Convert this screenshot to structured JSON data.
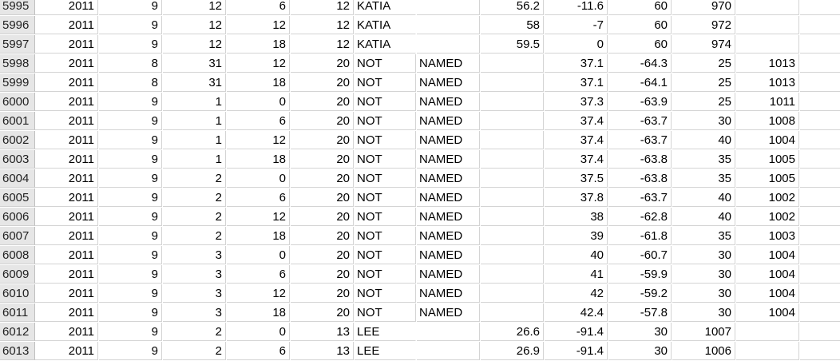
{
  "sheet": {
    "rows": [
      {
        "id": "5995",
        "cells": [
          "2011",
          "9",
          "12",
          "6",
          "12",
          "KATIA",
          "",
          "56.2",
          "-11.6",
          "60",
          "970",
          "",
          ""
        ]
      },
      {
        "id": "5996",
        "cells": [
          "2011",
          "9",
          "12",
          "12",
          "12",
          "KATIA",
          "",
          "58",
          "-7",
          "60",
          "972",
          "",
          ""
        ]
      },
      {
        "id": "5997",
        "cells": [
          "2011",
          "9",
          "12",
          "18",
          "12",
          "KATIA",
          "",
          "59.5",
          "0",
          "60",
          "974",
          "",
          ""
        ]
      },
      {
        "id": "5998",
        "cells": [
          "2011",
          "8",
          "31",
          "12",
          "20",
          "NOT",
          "NAMED",
          "",
          "37.1",
          "-64.3",
          "25",
          "1013",
          ""
        ]
      },
      {
        "id": "5999",
        "cells": [
          "2011",
          "8",
          "31",
          "18",
          "20",
          "NOT",
          "NAMED",
          "",
          "37.1",
          "-64.1",
          "25",
          "1013",
          ""
        ]
      },
      {
        "id": "6000",
        "cells": [
          "2011",
          "9",
          "1",
          "0",
          "20",
          "NOT",
          "NAMED",
          "",
          "37.3",
          "-63.9",
          "25",
          "1011",
          ""
        ]
      },
      {
        "id": "6001",
        "cells": [
          "2011",
          "9",
          "1",
          "6",
          "20",
          "NOT",
          "NAMED",
          "",
          "37.4",
          "-63.7",
          "30",
          "1008",
          ""
        ]
      },
      {
        "id": "6002",
        "cells": [
          "2011",
          "9",
          "1",
          "12",
          "20",
          "NOT",
          "NAMED",
          "",
          "37.4",
          "-63.7",
          "40",
          "1004",
          ""
        ]
      },
      {
        "id": "6003",
        "cells": [
          "2011",
          "9",
          "1",
          "18",
          "20",
          "NOT",
          "NAMED",
          "",
          "37.4",
          "-63.8",
          "35",
          "1005",
          ""
        ]
      },
      {
        "id": "6004",
        "cells": [
          "2011",
          "9",
          "2",
          "0",
          "20",
          "NOT",
          "NAMED",
          "",
          "37.5",
          "-63.8",
          "35",
          "1005",
          ""
        ]
      },
      {
        "id": "6005",
        "cells": [
          "2011",
          "9",
          "2",
          "6",
          "20",
          "NOT",
          "NAMED",
          "",
          "37.8",
          "-63.7",
          "40",
          "1002",
          ""
        ]
      },
      {
        "id": "6006",
        "cells": [
          "2011",
          "9",
          "2",
          "12",
          "20",
          "NOT",
          "NAMED",
          "",
          "38",
          "-62.8",
          "40",
          "1002",
          ""
        ]
      },
      {
        "id": "6007",
        "cells": [
          "2011",
          "9",
          "2",
          "18",
          "20",
          "NOT",
          "NAMED",
          "",
          "39",
          "-61.8",
          "35",
          "1003",
          ""
        ]
      },
      {
        "id": "6008",
        "cells": [
          "2011",
          "9",
          "3",
          "0",
          "20",
          "NOT",
          "NAMED",
          "",
          "40",
          "-60.7",
          "30",
          "1004",
          ""
        ]
      },
      {
        "id": "6009",
        "cells": [
          "2011",
          "9",
          "3",
          "6",
          "20",
          "NOT",
          "NAMED",
          "",
          "41",
          "-59.9",
          "30",
          "1004",
          ""
        ]
      },
      {
        "id": "6010",
        "cells": [
          "2011",
          "9",
          "3",
          "12",
          "20",
          "NOT",
          "NAMED",
          "",
          "42",
          "-59.2",
          "30",
          "1004",
          ""
        ]
      },
      {
        "id": "6011",
        "cells": [
          "2011",
          "9",
          "3",
          "18",
          "20",
          "NOT",
          "NAMED",
          "",
          "42.4",
          "-57.8",
          "30",
          "1004",
          ""
        ]
      },
      {
        "id": "6012",
        "cells": [
          "2011",
          "9",
          "2",
          "0",
          "13",
          "LEE",
          "",
          "26.6",
          "-91.4",
          "30",
          "1007",
          "",
          ""
        ]
      },
      {
        "id": "6013",
        "cells": [
          "2011",
          "9",
          "2",
          "6",
          "13",
          "LEE",
          "",
          "26.9",
          "-91.4",
          "30",
          "1006",
          "",
          ""
        ]
      }
    ]
  }
}
